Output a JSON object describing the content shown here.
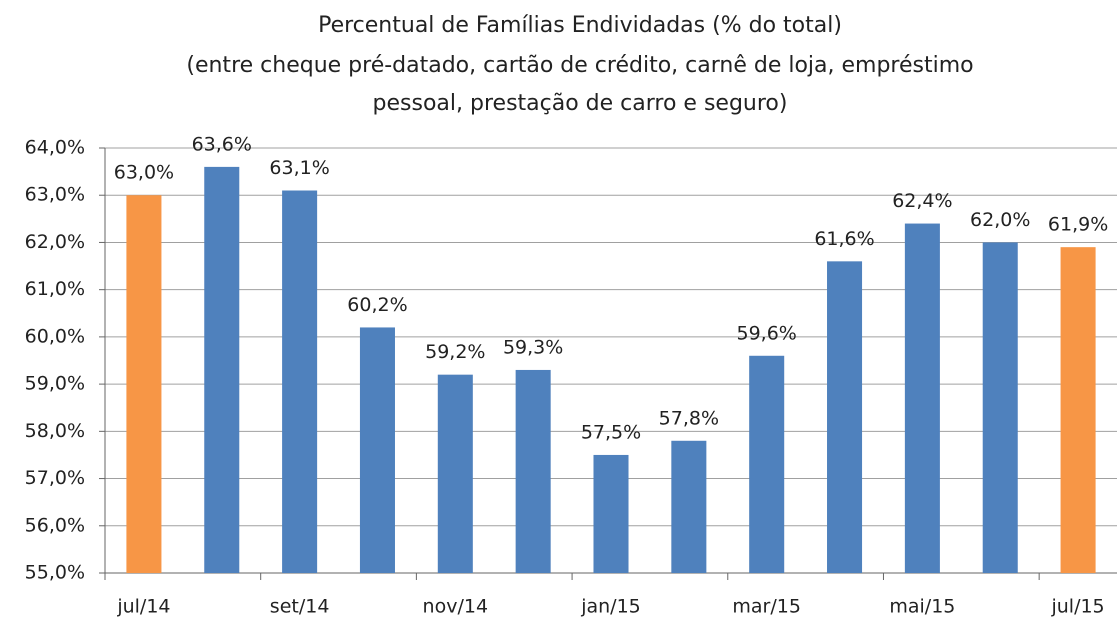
{
  "chart_data": {
    "type": "bar",
    "title": [
      "Percentual de Famílias Endividadas (% do total)",
      "(entre cheque pré-datado, cartão de crédito, carnê de loja, empréstimo",
      "pessoal, prestação de carro e seguro)"
    ],
    "categories": [
      "jul/14",
      null,
      "set/14",
      null,
      "nov/14",
      null,
      "jan/15",
      null,
      "mar/15",
      null,
      "mai/15",
      null,
      "jul/15"
    ],
    "values": [
      63.0,
      63.6,
      63.1,
      60.2,
      59.2,
      59.3,
      57.5,
      57.8,
      59.6,
      61.6,
      62.4,
      62.0,
      61.9
    ],
    "value_labels": [
      "63,0%",
      "63,6%",
      "63,1%",
      "60,2%",
      "59,2%",
      "59,3%",
      "57,5%",
      "57,8%",
      "59,6%",
      "61,6%",
      "62,4%",
      "62,0%",
      "61,9%"
    ],
    "colors": [
      "#f79646",
      "#4f81bd",
      "#4f81bd",
      "#4f81bd",
      "#4f81bd",
      "#4f81bd",
      "#4f81bd",
      "#4f81bd",
      "#4f81bd",
      "#4f81bd",
      "#4f81bd",
      "#4f81bd",
      "#f79646"
    ],
    "ylim": [
      55,
      64
    ],
    "yticks": [
      {
        "value": 55,
        "label": "55,0%"
      },
      {
        "value": 56,
        "label": "56,0%"
      },
      {
        "value": 57,
        "label": "57,0%"
      },
      {
        "value": 58,
        "label": "58,0%"
      },
      {
        "value": 59,
        "label": "59,0%"
      },
      {
        "value": 60,
        "label": "60,0%"
      },
      {
        "value": 61,
        "label": "61,0%"
      },
      {
        "value": 62,
        "label": "62,0%"
      },
      {
        "value": 63,
        "label": "63,0%"
      },
      {
        "value": 64,
        "label": "64,0%"
      }
    ],
    "grid": true
  }
}
